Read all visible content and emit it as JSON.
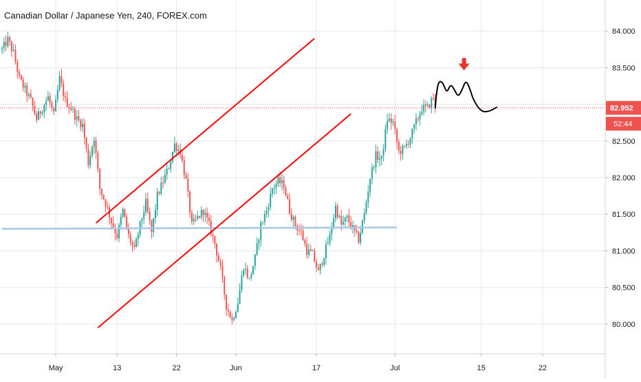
{
  "chart_data": {
    "type": "candlestick",
    "title": "Canadian Dollar / Japanese Yen, 240, FOREX.com",
    "x_ticks": [
      "May",
      "13",
      "22",
      "Jun",
      "17",
      "Jul",
      "15",
      "22"
    ],
    "y_ticks": [
      "84.000",
      "83.500",
      "83.000",
      "82.500",
      "82.000",
      "81.500",
      "81.000",
      "80.500",
      "80.000"
    ],
    "y_tick_values": [
      84.0,
      83.5,
      83.0,
      82.5,
      82.0,
      81.5,
      81.0,
      80.5,
      80.0
    ],
    "ylim": [
      79.65,
      84.35
    ],
    "last_price": {
      "label": "82.952",
      "value": 82.952
    },
    "countdown": "52:44",
    "price_path": [
      [
        0,
        83.75
      ],
      [
        3,
        83.88
      ],
      [
        6,
        83.7
      ],
      [
        9,
        83.35
      ],
      [
        12,
        83.2
      ],
      [
        15,
        83.05
      ],
      [
        18,
        82.8
      ],
      [
        21,
        82.95
      ],
      [
        24,
        83.1
      ],
      [
        27,
        82.85
      ],
      [
        30,
        83.35
      ],
      [
        33,
        83.05
      ],
      [
        36,
        82.95
      ],
      [
        39,
        82.8
      ],
      [
        42,
        82.72
      ],
      [
        45,
        82.2
      ],
      [
        48,
        82.55
      ],
      [
        51,
        81.85
      ],
      [
        54,
        81.65
      ],
      [
        57,
        81.4
      ],
      [
        60,
        81.2
      ],
      [
        63,
        81.55
      ],
      [
        66,
        81.2
      ],
      [
        69,
        81.0
      ],
      [
        72,
        81.35
      ],
      [
        75,
        81.65
      ],
      [
        78,
        81.25
      ],
      [
        81,
        81.75
      ],
      [
        84,
        81.95
      ],
      [
        87,
        82.15
      ],
      [
        90,
        82.45
      ],
      [
        93,
        82.35
      ],
      [
        96,
        81.95
      ],
      [
        99,
        81.35
      ],
      [
        102,
        81.45
      ],
      [
        105,
        81.55
      ],
      [
        108,
        81.35
      ],
      [
        111,
        81.1
      ],
      [
        114,
        80.75
      ],
      [
        117,
        80.25
      ],
      [
        120,
        80.05
      ],
      [
        123,
        80.3
      ],
      [
        126,
        80.8
      ],
      [
        129,
        80.6
      ],
      [
        132,
        80.9
      ],
      [
        135,
        81.35
      ],
      [
        138,
        81.55
      ],
      [
        141,
        81.85
      ],
      [
        144,
        81.95
      ],
      [
        147,
        81.9
      ],
      [
        150,
        81.55
      ],
      [
        153,
        81.35
      ],
      [
        156,
        81.25
      ],
      [
        159,
        81.0
      ],
      [
        162,
        80.95
      ],
      [
        165,
        80.7
      ],
      [
        168,
        80.95
      ],
      [
        171,
        81.2
      ],
      [
        174,
        81.6
      ],
      [
        177,
        81.35
      ],
      [
        180,
        81.45
      ],
      [
        183,
        81.3
      ],
      [
        186,
        81.15
      ],
      [
        189,
        81.5
      ],
      [
        192,
        82.0
      ],
      [
        195,
        82.3
      ],
      [
        198,
        82.25
      ],
      [
        201,
        82.8
      ],
      [
        204,
        82.75
      ],
      [
        207,
        82.35
      ],
      [
        210,
        82.4
      ],
      [
        213,
        82.55
      ],
      [
        216,
        82.75
      ],
      [
        219,
        82.95
      ],
      [
        222,
        82.95
      ],
      [
        225,
        83.1
      ],
      [
        226,
        82.95
      ]
    ],
    "candle_colors": {
      "up": "#26a69a",
      "down": "#ef5350"
    },
    "annotations": {
      "channel_upper": [
        [
          49,
          81.38
        ],
        [
          163,
          83.9
        ]
      ],
      "channel_lower": [
        [
          50,
          79.95
        ],
        [
          182,
          82.87
        ]
      ],
      "support_line": [
        [
          0,
          81.3
        ],
        [
          206,
          81.32
        ]
      ],
      "forecast_path": [
        [
          226,
          82.95
        ],
        [
          226.6,
          83.15
        ],
        [
          227.8,
          83.32
        ],
        [
          230,
          83.3
        ],
        [
          232,
          83.15
        ],
        [
          234,
          83.28
        ],
        [
          236,
          83.2
        ],
        [
          238,
          83.1
        ],
        [
          240,
          83.2
        ],
        [
          242,
          83.33
        ],
        [
          244,
          83.22
        ],
        [
          246,
          83.05
        ],
        [
          250,
          82.9
        ],
        [
          254,
          82.9
        ],
        [
          258,
          82.96
        ]
      ],
      "sell_arrow": [
        241,
        83.5
      ]
    },
    "colors": {
      "channel": "#ff0000",
      "support": "#a8c7e3",
      "forecast": "#000000",
      "price_label": "#ef5350",
      "arrow": "#e8352e",
      "grid": "#e6e8ea",
      "axis_text": "#131722"
    },
    "grid": true
  }
}
